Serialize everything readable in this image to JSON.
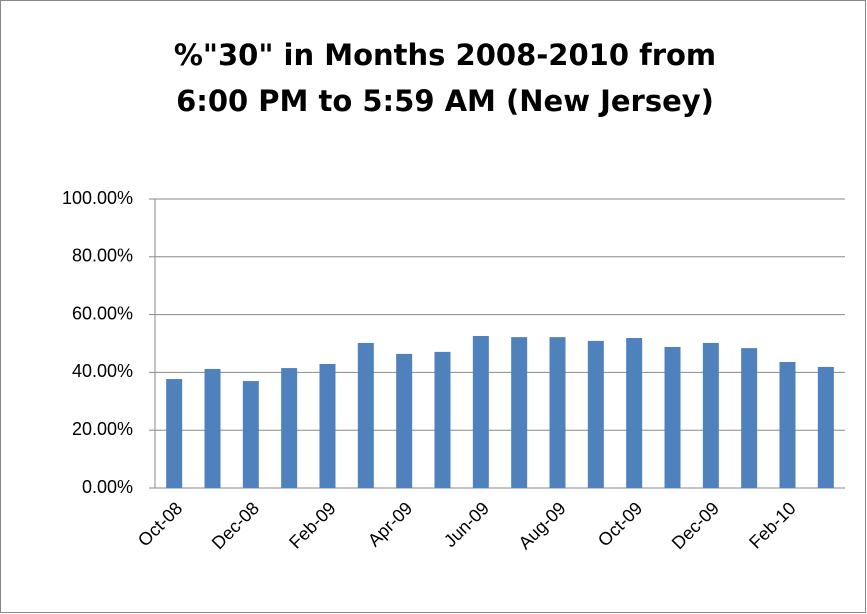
{
  "chart_data": {
    "type": "bar",
    "title": [
      "%\"30\" in Months 2008-2010 from",
      "6:00 PM to 5:59 AM (New Jersey)"
    ],
    "categories": [
      "Oct-08",
      null,
      "Dec-08",
      null,
      "Feb-09",
      null,
      "Apr-09",
      null,
      "Jun-09",
      null,
      "Aug-09",
      null,
      "Oct-09",
      null,
      "Dec-09",
      null,
      "Feb-10",
      null
    ],
    "values": [
      37.7,
      41.2,
      37.0,
      41.5,
      42.9,
      50.2,
      46.4,
      47.1,
      52.6,
      52.2,
      52.2,
      50.9,
      51.9,
      48.8,
      50.2,
      48.4,
      43.6,
      41.9
    ],
    "color": "#4f81bd",
    "ylim": [
      0,
      100
    ],
    "yticks": [
      {
        "value": 0,
        "label": "0.00%"
      },
      {
        "value": 20,
        "label": "20.00%"
      },
      {
        "value": 40,
        "label": "40.00%"
      },
      {
        "value": 60,
        "label": "60.00%"
      },
      {
        "value": 80,
        "label": "80.00%"
      },
      {
        "value": 100,
        "label": "100.00%"
      }
    ],
    "grid": true
  }
}
